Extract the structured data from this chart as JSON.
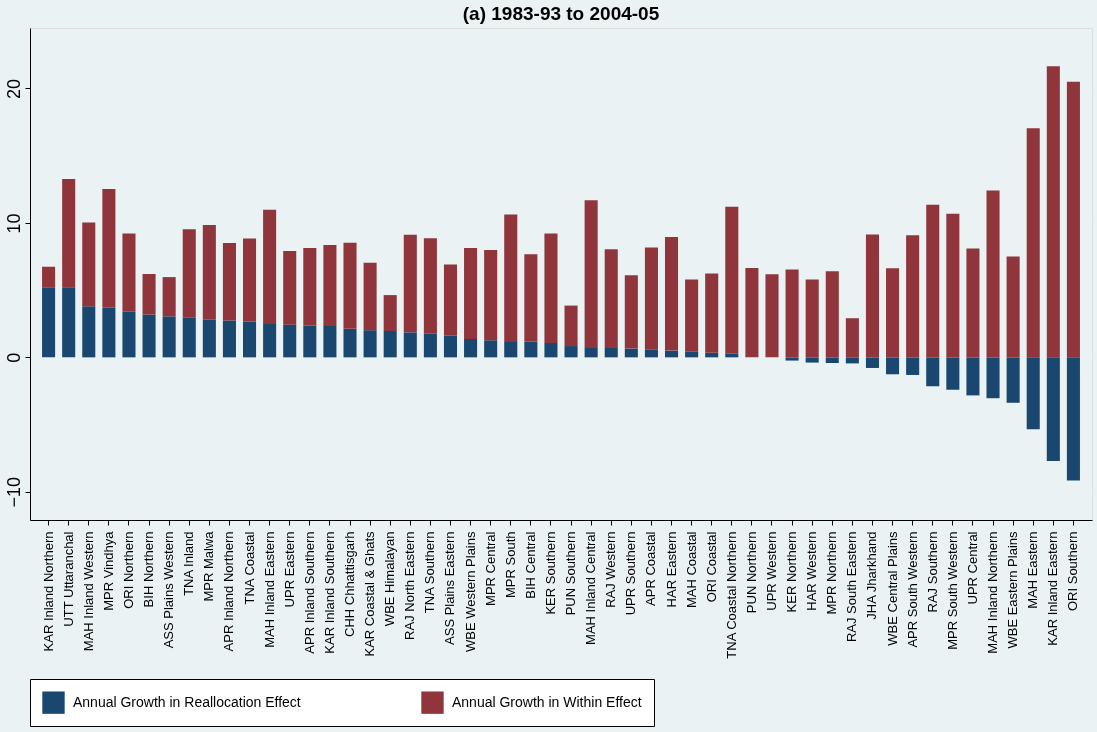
{
  "chart_data": {
    "type": "bar",
    "title": "(a)      1983-93 to 2004-05",
    "stacked": true,
    "categories": [
      "KAR Inland Northern",
      "UTT Uttaranchal",
      "MAH Inland Western",
      "MPR Vindhya",
      "ORI Northern",
      "BIH Northern",
      "ASS Plains Western",
      "TNA Inland",
      "MPR Malwa",
      "APR Inland Northern",
      "TNA Coastal",
      "MAH Inland Eastern",
      "UPR Eastern",
      "APR Inland Southern",
      "KAR Inland Southern",
      "CHH Chhattisgarh",
      "KAR Coastal & Ghats",
      "WBE Himalayan",
      "RAJ North Eastern",
      "TNA Southern",
      "ASS Plains Eastern",
      "WBE Western Plains",
      "MPR Central",
      "MPR South",
      "BIH Central",
      "KER Southern",
      "PUN Southern",
      "MAH Inland Central",
      "RAJ Western",
      "UPR Southern",
      "APR Coastal",
      "HAR Eastern",
      "MAH Coastal",
      "ORI Coastal",
      "TNA Coastal Northern",
      "PUN Northern",
      "UPR Western",
      "KER Northern",
      "HAR Western",
      "MPR Northern",
      "RAJ South Eastern",
      "JHA Jharkhand",
      "WBE Central Plains",
      "APR South Western",
      "RAJ Southern",
      "MPR South Western",
      "UPR Central",
      "MAH Inland Northern",
      "WBE Eastern Plains",
      "MAH Eastern",
      "KAR Inland Eastern",
      "ORI Southern"
    ],
    "series": [
      {
        "name": "Annual Growth in Reallocation Effect",
        "color": "#1a476f",
        "values": [
          5.22,
          5.22,
          3.8,
          3.72,
          3.39,
          3.18,
          3.05,
          2.95,
          2.82,
          2.74,
          2.64,
          2.48,
          2.43,
          2.38,
          2.33,
          2.12,
          2.02,
          1.96,
          1.86,
          1.78,
          1.6,
          1.37,
          1.27,
          1.21,
          1.19,
          1.07,
          0.84,
          0.76,
          0.76,
          0.65,
          0.6,
          0.5,
          0.42,
          0.34,
          0.29,
          null,
          0.0,
          -0.24,
          -0.39,
          -0.42,
          -0.45,
          -0.79,
          -1.26,
          -1.31,
          -2.15,
          -2.41,
          -2.83,
          -3.04,
          -3.38,
          -5.34,
          -7.72,
          -9.16
        ]
      },
      {
        "name": "Annual Growth in Within Effect",
        "color": "#90353b",
        "values": [
          1.52,
          8.04,
          6.23,
          8.81,
          5.83,
          3.02,
          2.92,
          6.58,
          7.02,
          5.76,
          6.2,
          8.5,
          5.48,
          5.76,
          6.02,
          6.41,
          5.01,
          2.67,
          7.26,
          7.08,
          5.3,
          6.77,
          6.71,
          9.41,
          6.48,
          8.14,
          3.01,
          10.92,
          7.28,
          5.45,
          7.57,
          8.45,
          5.37,
          5.89,
          10.91,
          6.65,
          6.18,
          6.54,
          5.79,
          6.41,
          2.91,
          9.14,
          6.62,
          9.08,
          11.36,
          10.68,
          8.09,
          12.41,
          7.51,
          17.04,
          21.65,
          20.5
        ]
      }
    ],
    "ylim": [
      -12.1,
      24.5
    ],
    "yticks": [
      -10,
      0,
      10,
      20
    ],
    "grid": "y",
    "legend": "bottom"
  }
}
